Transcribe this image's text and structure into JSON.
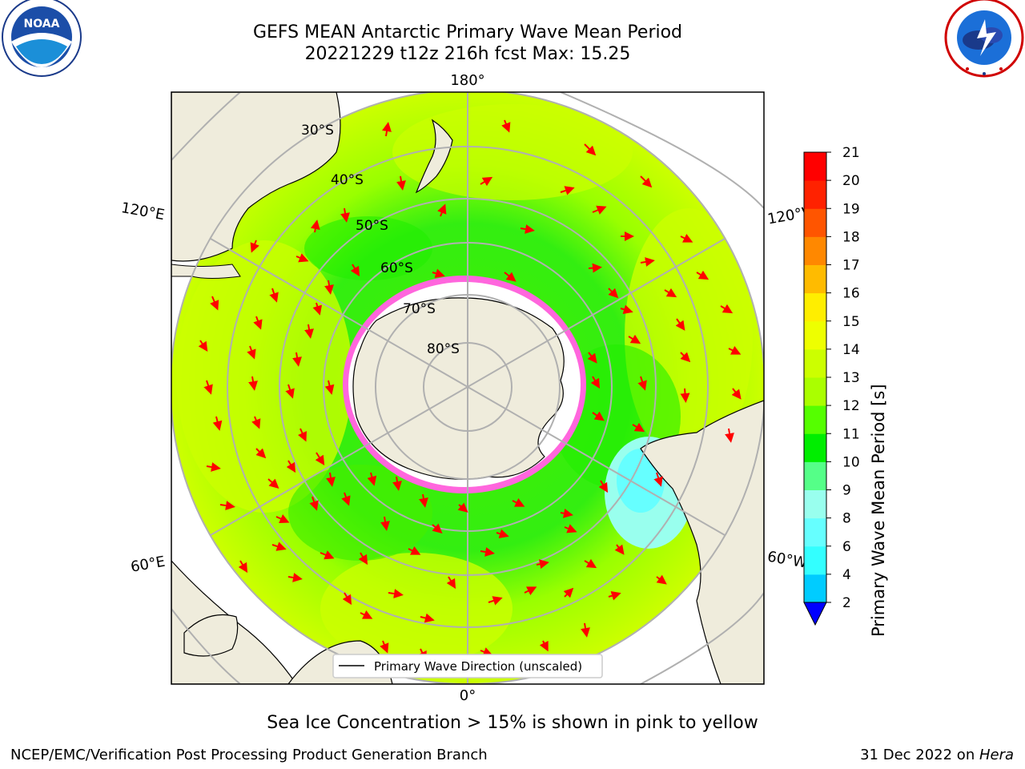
{
  "header": {
    "title_line1": "GEFS MEAN Antarctic Primary Wave Mean Period",
    "title_line2": "20221229 t12z 216h fcst   Max: 15.25"
  },
  "logos": {
    "left": {
      "name": "noaa-logo",
      "text": "NOAA",
      "ring_text": "NATIONAL OCEANIC AND ATMOSPHERIC ADMINISTRATION · U.S. DEPARTMENT OF COMMERCE"
    },
    "right": {
      "name": "nws-logo",
      "ring_text": "NATIONAL WEATHER SERVICE"
    }
  },
  "map": {
    "projection": "south-polar-stereographic",
    "lon_labels": {
      "top": "180°",
      "bottom": "0°",
      "left_upper": "120°E",
      "left_lower": "60°E",
      "right_upper": "120°W",
      "right_lower": "60°W"
    },
    "lat_labels": [
      "30°S",
      "40°S",
      "50°S",
      "60°S",
      "70°S",
      "80°S"
    ],
    "legend_label": "Primary Wave Direction (unscaled)",
    "colors": {
      "land": "#efecdc",
      "ocean_default": "#ccff00",
      "arrow": "#ff0000",
      "grid": "#b0b0b0",
      "ice_pink": "#ff33cc"
    }
  },
  "colorbar": {
    "label": "Primary Wave Mean Period [s]",
    "ticks": [
      "2",
      "4",
      "6",
      "8",
      "9",
      "10",
      "11",
      "12",
      "13",
      "14",
      "15",
      "16",
      "17",
      "18",
      "19",
      "20",
      "21"
    ],
    "colors": [
      "#0055ff",
      "#00ccff",
      "#33ffff",
      "#66ffff",
      "#99ffee",
      "#55ff88",
      "#00ee00",
      "#55ff00",
      "#aaff00",
      "#ccff00",
      "#eeff00",
      "#ffee00",
      "#ffbb00",
      "#ff8800",
      "#ff5500",
      "#ff2200",
      "#ff0000"
    ],
    "extend_color": "#0000ff"
  },
  "caption": "Sea Ice Concentration > 15% is shown in pink to yellow",
  "footer": {
    "left": "NCEP/EMC/Verification Post Processing Product Generation Branch",
    "right_date": "31 Dec 2022 on ",
    "right_host": "Hera"
  }
}
